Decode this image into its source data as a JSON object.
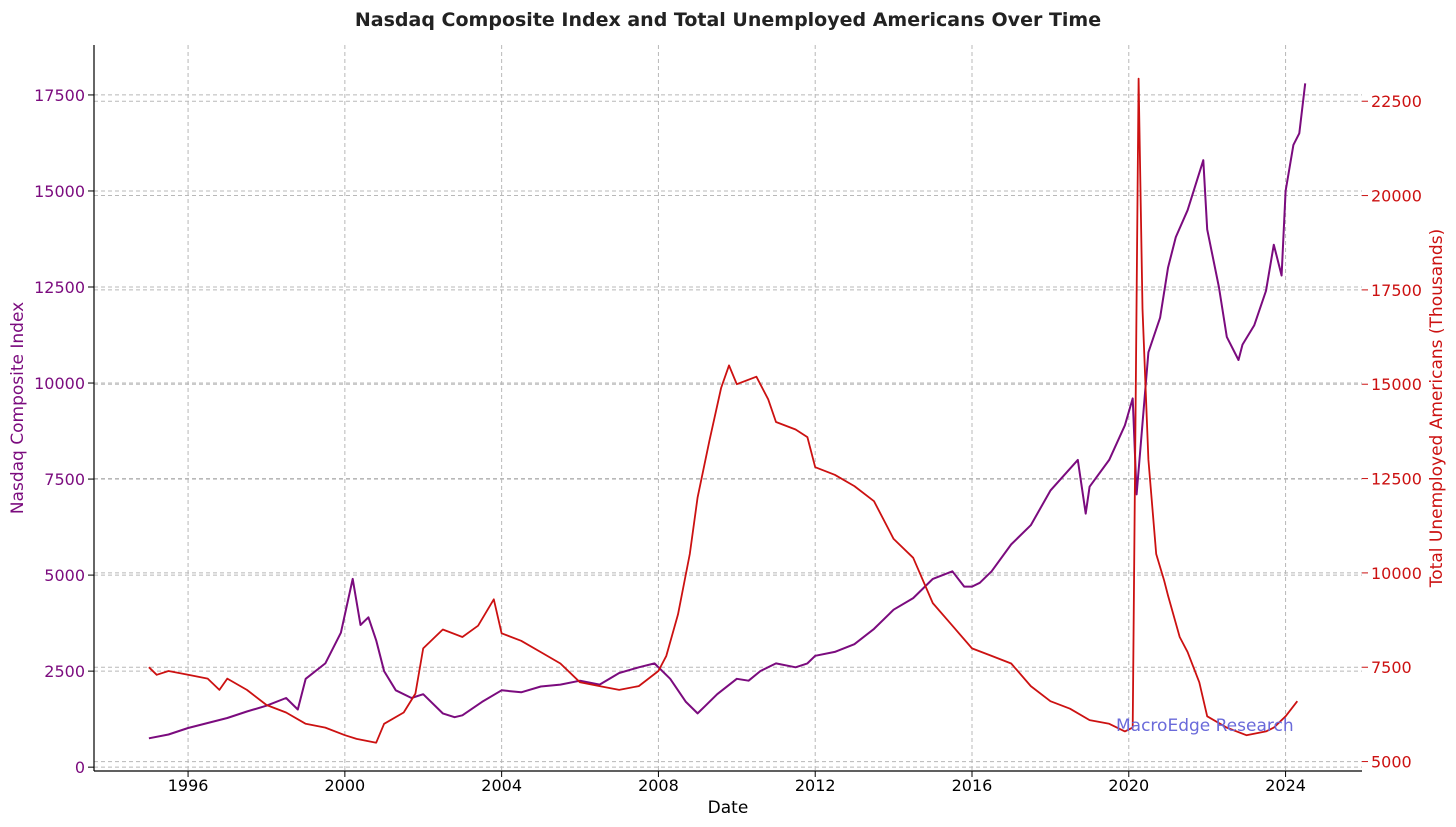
{
  "chart_data": {
    "type": "line",
    "title": "Nasdaq Composite Index and Total Unemployed Americans Over Time",
    "xlabel": "Date",
    "ylabel_left": "Nasdaq Composite Index",
    "ylabel_right": "Total Unemployed Americans (Thousands)",
    "x_ticks": [
      "1996",
      "2000",
      "2004",
      "2008",
      "2012",
      "2016",
      "2020",
      "2024"
    ],
    "xlim": [
      1993.6,
      2025.95
    ],
    "ylim_left": [
      -100,
      18800
    ],
    "ylim_right": [
      4750,
      23990
    ],
    "yticks_left": [
      "0",
      "2500",
      "5000",
      "7500",
      "10000",
      "12500",
      "15000",
      "17500"
    ],
    "yticks_right": [
      "5000",
      "7500",
      "10000",
      "12500",
      "15000",
      "17500",
      "20000",
      "22500"
    ],
    "grid": true,
    "watermark": "MacroEdge Research",
    "colors": {
      "nasdaq": "#7B0B7E",
      "unemployed": "#CC1111",
      "watermark": "#6A6ADA",
      "axis": "#000000"
    },
    "series": [
      {
        "name": "Nasdaq Composite Index",
        "axis": "left",
        "color": "#7B0B7E",
        "x": [
          1995.0,
          1995.5,
          1996.0,
          1996.5,
          1997.0,
          1997.5,
          1998.0,
          1998.5,
          1998.8,
          1999.0,
          1999.5,
          1999.9,
          2000.2,
          2000.4,
          2000.6,
          2000.8,
          2001.0,
          2001.3,
          2001.7,
          2002.0,
          2002.5,
          2002.8,
          2003.0,
          2003.5,
          2004.0,
          2004.5,
          2005.0,
          2005.5,
          2006.0,
          2006.5,
          2007.0,
          2007.5,
          2007.9,
          2008.3,
          2008.7,
          2009.0,
          2009.2,
          2009.5,
          2010.0,
          2010.3,
          2010.6,
          2011.0,
          2011.5,
          2011.8,
          2012.0,
          2012.5,
          2013.0,
          2013.5,
          2014.0,
          2014.5,
          2015.0,
          2015.5,
          2015.8,
          2016.0,
          2016.2,
          2016.5,
          2017.0,
          2017.5,
          2018.0,
          2018.7,
          2018.9,
          2019.0,
          2019.5,
          2019.9,
          2020.1,
          2020.2,
          2020.5,
          2020.8,
          2021.0,
          2021.2,
          2021.5,
          2021.9,
          2022.0,
          2022.3,
          2022.5,
          2022.8,
          2022.9,
          2023.2,
          2023.5,
          2023.7,
          2023.9,
          2024.0,
          2024.2,
          2024.35,
          2024.5
        ],
        "y": [
          750,
          850,
          1020,
          1150,
          1280,
          1450,
          1600,
          1800,
          1500,
          2300,
          2700,
          3500,
          4900,
          3700,
          3900,
          3300,
          2500,
          2000,
          1800,
          1900,
          1400,
          1300,
          1350,
          1700,
          2000,
          1950,
          2100,
          2150,
          2250,
          2150,
          2450,
          2600,
          2700,
          2300,
          1700,
          1400,
          1600,
          1900,
          2300,
          2250,
          2500,
          2700,
          2600,
          2700,
          2900,
          3000,
          3200,
          3600,
          4100,
          4400,
          4900,
          5100,
          4700,
          4700,
          4800,
          5100,
          5800,
          6300,
          7200,
          8000,
          6600,
          7300,
          8000,
          8900,
          9600,
          7100,
          10800,
          11700,
          13000,
          13800,
          14500,
          15800,
          14000,
          12500,
          11200,
          10600,
          11000,
          11500,
          12400,
          13600,
          12800,
          15000,
          16200,
          16500,
          17800
        ]
      },
      {
        "name": "Total Unemployed Americans (Thousands)",
        "axis": "right",
        "color": "#CC1111",
        "x": [
          1995.0,
          1995.2,
          1995.5,
          1996.0,
          1996.5,
          1996.8,
          1997.0,
          1997.5,
          1998.0,
          1998.5,
          1999.0,
          1999.5,
          2000.0,
          2000.3,
          2000.8,
          2001.0,
          2001.5,
          2001.8,
          2002.0,
          2002.3,
          2002.5,
          2003.0,
          2003.4,
          2003.8,
          2004.0,
          2004.5,
          2005.0,
          2005.5,
          2006.0,
          2006.5,
          2007.0,
          2007.5,
          2008.0,
          2008.2,
          2008.5,
          2008.8,
          2009.0,
          2009.3,
          2009.6,
          2009.8,
          2010.0,
          2010.5,
          2010.8,
          2011.0,
          2011.5,
          2011.8,
          2012.0,
          2012.5,
          2013.0,
          2013.5,
          2014.0,
          2014.5,
          2015.0,
          2015.5,
          2016.0,
          2016.5,
          2017.0,
          2017.5,
          2018.0,
          2018.5,
          2019.0,
          2019.5,
          2019.9,
          2020.1,
          2020.25,
          2020.35,
          2020.5,
          2020.7,
          2020.9,
          2021.0,
          2021.3,
          2021.5,
          2021.8,
          2022.0,
          2022.5,
          2023.0,
          2023.5,
          2023.7,
          2024.0,
          2024.3
        ],
        "y": [
          7500,
          7300,
          7400,
          7300,
          7200,
          6900,
          7200,
          6900,
          6500,
          6300,
          6000,
          5900,
          5700,
          5600,
          5500,
          6000,
          6300,
          6800,
          8000,
          8300,
          8500,
          8300,
          8600,
          9300,
          8400,
          8200,
          7900,
          7600,
          7100,
          7000,
          6900,
          7000,
          7400,
          7800,
          8900,
          10500,
          12000,
          13500,
          14900,
          15500,
          15000,
          15200,
          14600,
          14000,
          13800,
          13600,
          12800,
          12600,
          12300,
          11900,
          10900,
          10400,
          9200,
          8600,
          8000,
          7800,
          7600,
          7000,
          6600,
          6400,
          6100,
          6000,
          5800,
          5900,
          23100,
          17000,
          13000,
          10500,
          9800,
          9400,
          8300,
          7900,
          7100,
          6200,
          5900,
          5700,
          5800,
          5900,
          6200,
          6600
        ]
      }
    ]
  }
}
